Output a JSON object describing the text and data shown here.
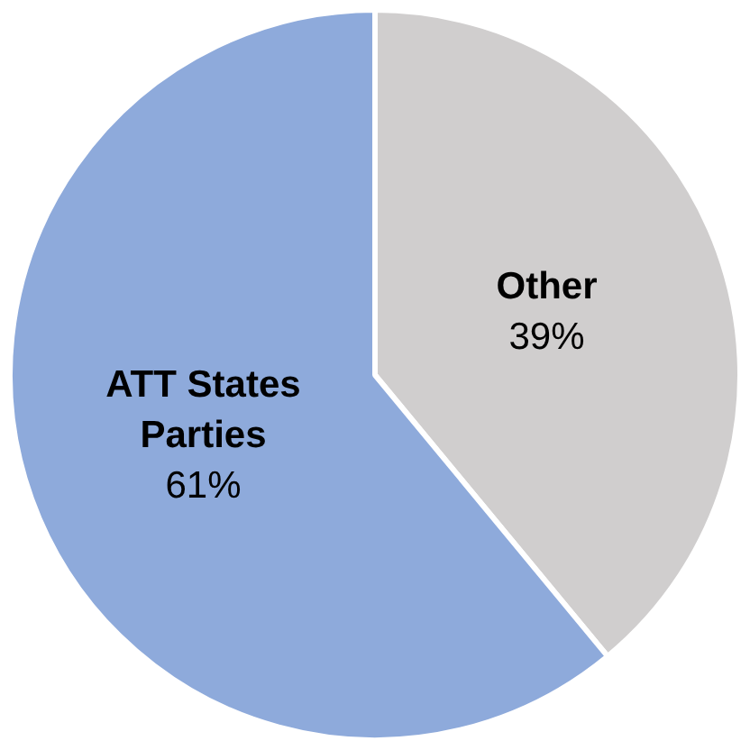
{
  "chart_data": {
    "type": "pie",
    "categories": [
      "Other",
      "ATT States Parties"
    ],
    "values": [
      39,
      61
    ],
    "value_labels": [
      "39%",
      "61%"
    ],
    "colors": [
      "#d0cece",
      "#8eaadb"
    ]
  }
}
